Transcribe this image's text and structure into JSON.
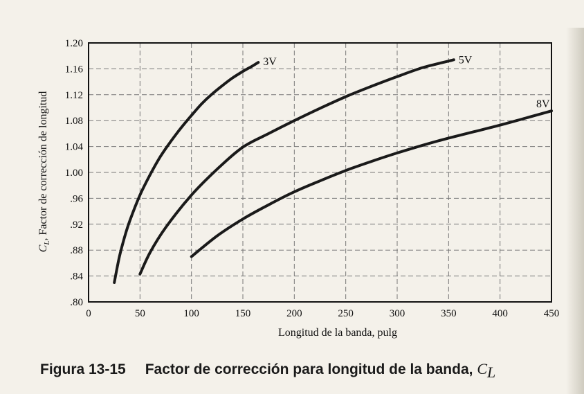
{
  "chart_data": {
    "type": "line",
    "ylabel_symbol": "C",
    "ylabel_subscript": "L",
    "ylabel_text": ", Factor de corrección de longitud",
    "xlabel": "Longitud de la banda, pulg",
    "xlim": [
      0,
      450
    ],
    "ylim": [
      0.8,
      1.2
    ],
    "x_ticks": [
      "0",
      "50",
      "100",
      "150",
      "200",
      "250",
      "300",
      "350",
      "400",
      "450"
    ],
    "x_tick_values": [
      0,
      50,
      100,
      150,
      200,
      250,
      300,
      350,
      400,
      450
    ],
    "y_ticks": [
      ".80",
      ".84",
      ".88",
      ".92",
      ".96",
      "1.00",
      "1.04",
      "1.08",
      "1.12",
      "1.16",
      "1.20"
    ],
    "y_tick_values": [
      0.8,
      0.84,
      0.88,
      0.92,
      0.96,
      1.0,
      1.04,
      1.08,
      1.12,
      1.16,
      1.2
    ],
    "grid": "dashed",
    "series": [
      {
        "name": "3V",
        "x": [
          25,
          30,
          35,
          40,
          50,
          60,
          70,
          80,
          90,
          100,
          110,
          120,
          130,
          140,
          150,
          160,
          165
        ],
        "y": [
          0.83,
          0.87,
          0.9,
          0.925,
          0.965,
          0.997,
          1.025,
          1.048,
          1.069,
          1.088,
          1.106,
          1.121,
          1.134,
          1.146,
          1.156,
          1.165,
          1.17
        ]
      },
      {
        "name": "5V",
        "x": [
          50,
          60,
          75,
          100,
          125,
          150,
          175,
          200,
          225,
          250,
          275,
          300,
          325,
          350,
          355
        ],
        "y": [
          0.843,
          0.877,
          0.915,
          0.965,
          1.005,
          1.039,
          1.06,
          1.08,
          1.099,
          1.117,
          1.133,
          1.148,
          1.162,
          1.172,
          1.174
        ]
      },
      {
        "name": "8V",
        "x": [
          100,
          125,
          150,
          175,
          200,
          225,
          250,
          275,
          300,
          325,
          350,
          375,
          400,
          425,
          450
        ],
        "y": [
          0.87,
          0.902,
          0.928,
          0.95,
          0.97,
          0.987,
          1.003,
          1.017,
          1.03,
          1.042,
          1.053,
          1.063,
          1.073,
          1.084,
          1.095
        ]
      }
    ]
  },
  "caption": {
    "figure_number": "Figura 13-15",
    "text": "Factor de corrección para longitud de la banda, ",
    "symbol": "C",
    "subscript": "L"
  }
}
